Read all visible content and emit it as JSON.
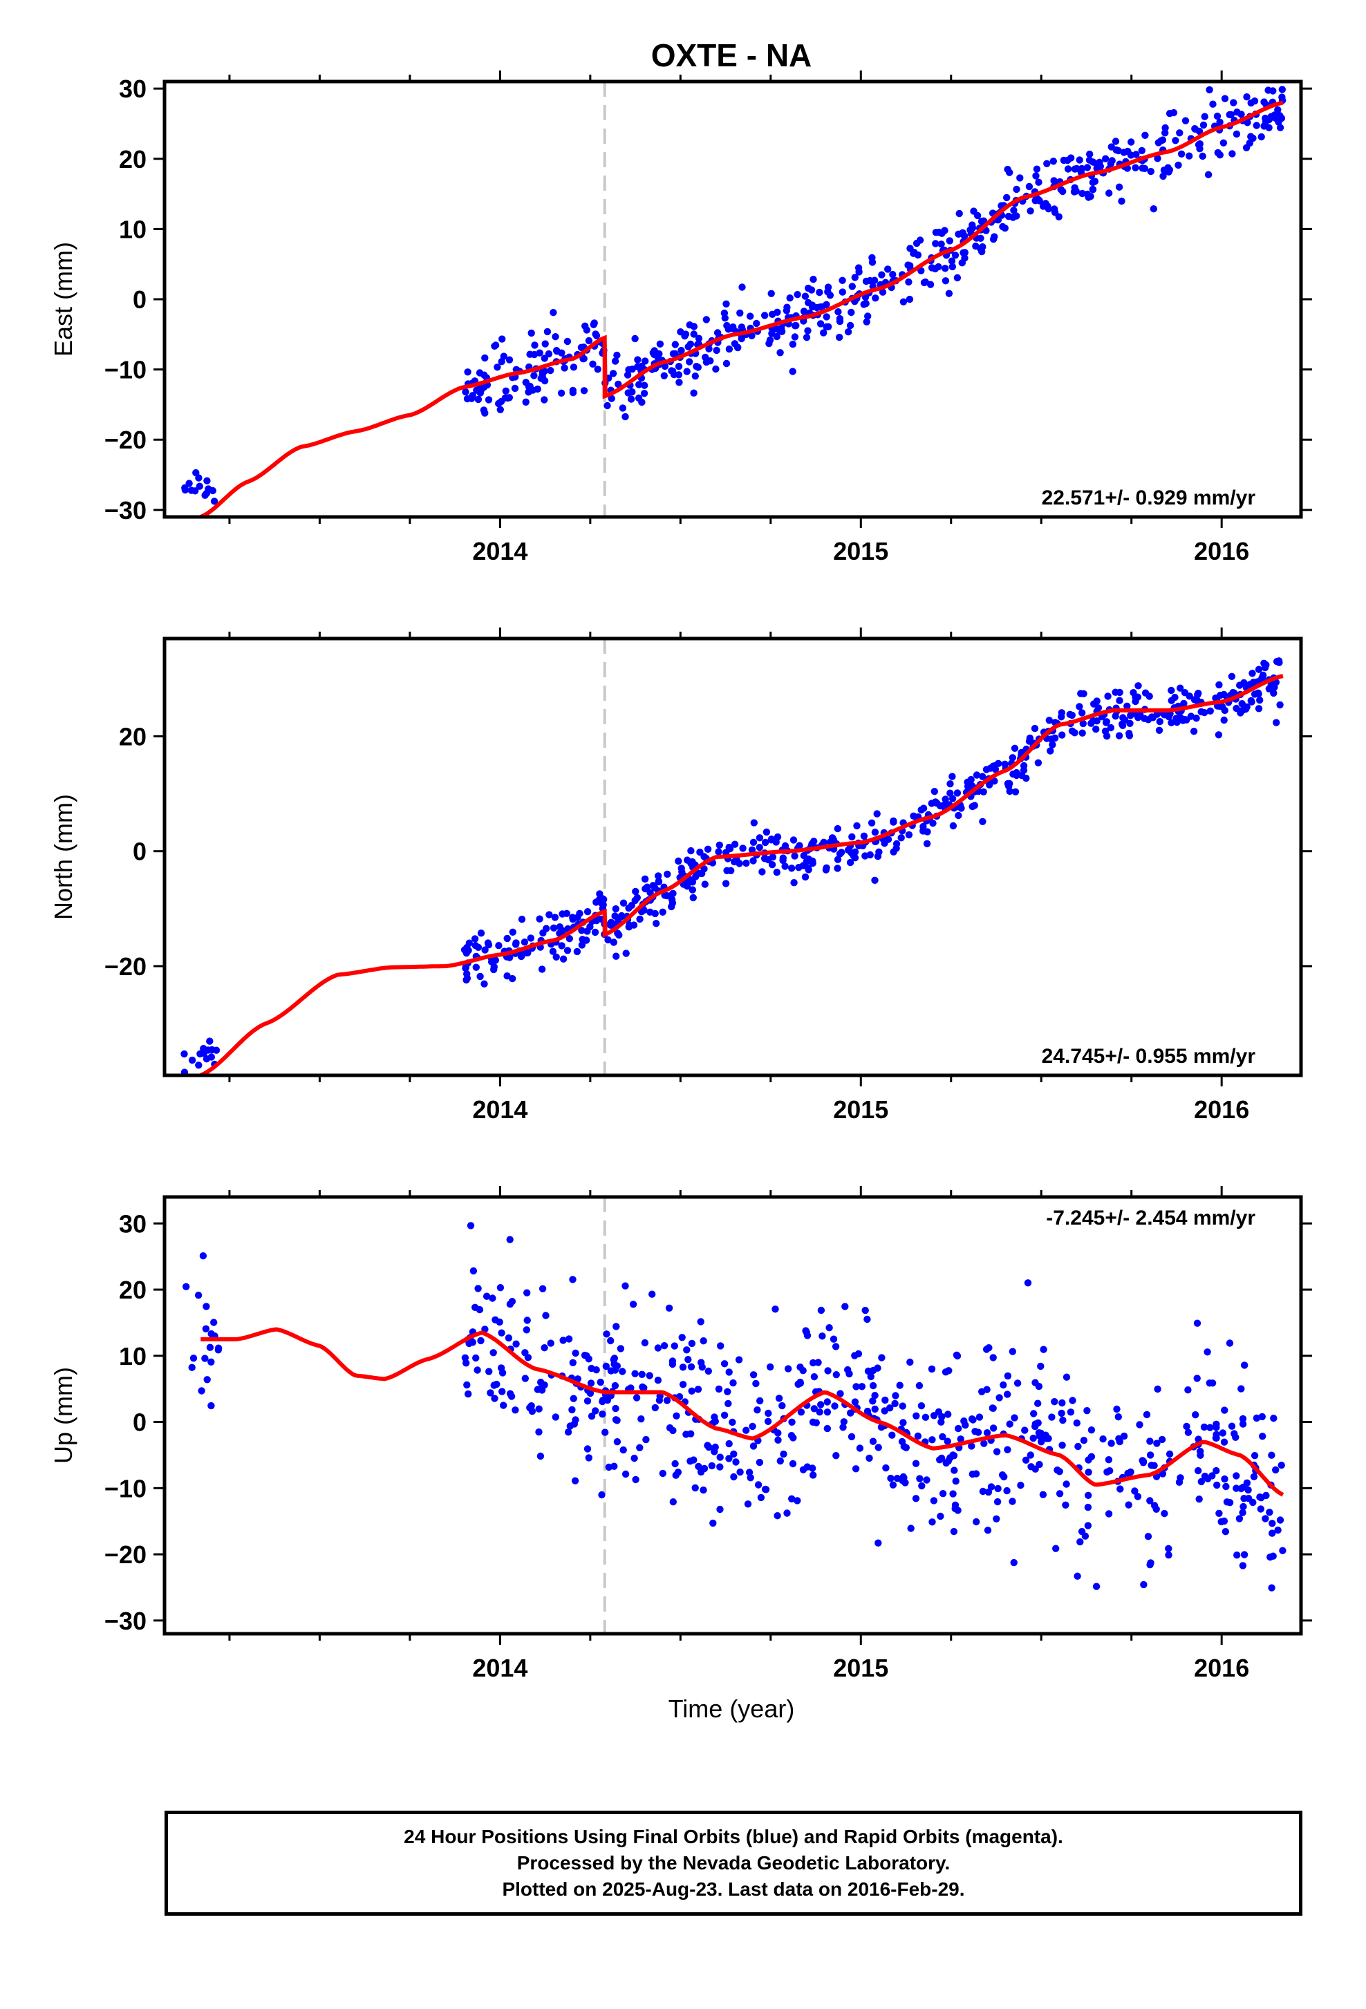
{
  "title": "OXTE - NA",
  "xlabel": "Time (year)",
  "footer": {
    "lines": [
      "24 Hour Positions Using Final Orbits (blue) and Rapid Orbits (magenta).",
      "Processed by the Nevada Geodetic Laboratory.",
      "Plotted on 2025-Aug-23. Last data on 2016-Feb-29."
    ]
  },
  "colors": {
    "points": "#0000ff",
    "fit": "#ff0000",
    "event_line": "#c8c8c8",
    "axes": "#000000"
  },
  "chart_data": [
    {
      "type": "scatter",
      "name": "east-panel",
      "ylabel": "East (mm)",
      "rate_label": "22.571+/- 0.929 mm/yr",
      "xlim": [
        2013.07,
        2016.22
      ],
      "ylim": [
        -31,
        31
      ],
      "x_ticks": [
        2014,
        2015,
        2016
      ],
      "y_ticks": [
        -30,
        -20,
        -10,
        0,
        10,
        20,
        30
      ],
      "event_x": 2014.29,
      "grid": false,
      "segments": [
        {
          "x0": 2013.12,
          "x1": 2013.22,
          "level": -27,
          "noise": 1.5,
          "n": 14
        },
        {
          "x0": 2013.9,
          "x1": 2016.17,
          "level": null,
          "noise": 2.2,
          "n": 600
        }
      ],
      "fit_knots": {
        "x": [
          2013.17,
          2013.3,
          2013.45,
          2013.6,
          2013.75,
          2013.9,
          2014.05,
          2014.2,
          2014.29,
          2014.29,
          2014.45,
          2014.65,
          2014.85,
          2015.05,
          2015.25,
          2015.45,
          2015.65,
          2015.85,
          2016.0,
          2016.17
        ],
        "y": [
          -31,
          -26,
          -21,
          -18.8,
          -16.5,
          -12.5,
          -10.5,
          -8.5,
          -5.5,
          -13.8,
          -9,
          -5,
          -2.5,
          1.5,
          7,
          14.5,
          18,
          21,
          24.5,
          28
        ]
      }
    },
    {
      "type": "scatter",
      "name": "north-panel",
      "ylabel": "North (mm)",
      "rate_label": "24.745+/- 0.955 mm/yr",
      "xlim": [
        2013.07,
        2016.22
      ],
      "ylim": [
        -39,
        37
      ],
      "x_ticks": [
        2014,
        2015,
        2016
      ],
      "y_ticks": [
        -20,
        0,
        20
      ],
      "event_x": 2014.29,
      "grid": false,
      "segments": [
        {
          "x0": 2013.12,
          "x1": 2013.22,
          "level": -35.5,
          "noise": 1.5,
          "n": 14
        },
        {
          "x0": 2013.9,
          "x1": 2016.17,
          "level": null,
          "noise": 2.2,
          "n": 600
        }
      ],
      "fit_knots": {
        "x": [
          2013.17,
          2013.35,
          2013.55,
          2013.7,
          2013.85,
          2014.0,
          2014.15,
          2014.29,
          2014.29,
          2014.45,
          2014.6,
          2014.8,
          2015.0,
          2015.2,
          2015.4,
          2015.55,
          2015.7,
          2015.85,
          2016.0,
          2016.17
        ],
        "y": [
          -39,
          -30,
          -21.5,
          -20.2,
          -20,
          -18,
          -15.5,
          -10.5,
          -14.5,
          -7,
          -1,
          0,
          1.5,
          6,
          14,
          22,
          24.5,
          24.5,
          26,
          30.5
        ]
      }
    },
    {
      "type": "scatter",
      "name": "up-panel",
      "ylabel": "Up (mm)",
      "rate_label": "-7.245+/- 2.454 mm/yr",
      "xlim": [
        2013.07,
        2016.22
      ],
      "ylim": [
        -32,
        34
      ],
      "x_ticks": [
        2014,
        2015,
        2016
      ],
      "y_ticks": [
        -30,
        -20,
        -10,
        0,
        10,
        20,
        30
      ],
      "event_x": 2014.29,
      "grid": false,
      "segments": [
        {
          "x0": 2013.12,
          "x1": 2013.22,
          "level": null,
          "noise": 6,
          "n": 18
        },
        {
          "x0": 2013.9,
          "x1": 2016.17,
          "level": null,
          "noise": 7,
          "n": 650
        }
      ],
      "fit_knots": {
        "x": [
          2013.17,
          2013.27,
          2013.38,
          2013.5,
          2013.6,
          2013.68,
          2013.8,
          2013.95,
          2014.1,
          2014.29,
          2014.29,
          2014.45,
          2014.6,
          2014.7,
          2014.9,
          2015.05,
          2015.2,
          2015.4,
          2015.55,
          2015.65,
          2015.8,
          2015.95,
          2016.05,
          2016.17
        ],
        "y": [
          12.5,
          12.5,
          14,
          11.5,
          7,
          6.5,
          9.5,
          13.5,
          8,
          4.5,
          4.5,
          4.5,
          -1,
          -2.5,
          4.5,
          0,
          -4,
          -2,
          -5,
          -9.5,
          -8,
          -3,
          -5,
          -11
        ]
      }
    }
  ]
}
